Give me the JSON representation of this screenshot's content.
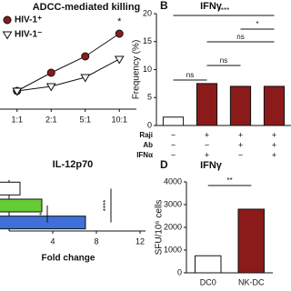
{
  "chart_data": [
    {
      "type": "line",
      "title": "ADCC-mediated killing",
      "categories": [
        "1:1",
        "2:1",
        "5:1",
        "10:1"
      ],
      "series": [
        {
          "name": "HIV-1⁺",
          "color": "#8b1a1a",
          "marker": "circle",
          "values": [
            20,
            40,
            58,
            83
          ]
        },
        {
          "name": "HIV-1⁻",
          "color": "#ffffff",
          "marker": "triangle",
          "values": [
            20,
            25,
            35,
            55
          ]
        }
      ],
      "ylim": [
        0,
        100
      ],
      "annotations": [
        "*"
      ]
    },
    {
      "type": "bar",
      "panel_label": "B",
      "title": "IFNγ",
      "ylabel": "Frequency (%)",
      "rows": [
        {
          "name": "Raji",
          "labels": [
            "−",
            "+",
            "+",
            "+"
          ]
        },
        {
          "name": "Ab",
          "labels": [
            "−",
            "−",
            "+",
            "+"
          ]
        },
        {
          "name": "IFNα",
          "labels": [
            "−",
            "+",
            "−",
            "+"
          ]
        }
      ],
      "values": [
        1.5,
        7.5,
        7,
        7
      ],
      "colors": [
        "#ffffff",
        "#8b1a1a",
        "#8b1a1a",
        "#8b1a1a"
      ],
      "ylim": [
        0,
        20
      ],
      "yticks": [
        0,
        5,
        10,
        15,
        20
      ],
      "annotations": [
        "****",
        "*",
        "ns",
        "ns",
        "ns"
      ]
    },
    {
      "type": "barh",
      "title": "IL-12p70",
      "xlabel": "Fold change",
      "categories": [
        null,
        null,
        null
      ],
      "values": [
        1,
        3,
        7
      ],
      "colors": [
        "#ffffff",
        "#66cc33",
        "#3f6fd9"
      ],
      "xlim": [
        0,
        12.5
      ],
      "xticks": [
        4,
        8,
        12
      ],
      "annotations": [
        "*",
        "****"
      ]
    },
    {
      "type": "bar",
      "panel_label": "D",
      "title": "IFNγ",
      "ylabel": "SFU/10⁶ cells",
      "categories": [
        "DC0",
        "NK-DC"
      ],
      "values": [
        750,
        2800
      ],
      "colors": [
        "#ffffff",
        "#8b1a1a"
      ],
      "ylim": [
        0,
        4000
      ],
      "yticks": [
        0,
        1000,
        2000,
        3000,
        4000
      ],
      "annotations": [
        "**"
      ]
    }
  ]
}
